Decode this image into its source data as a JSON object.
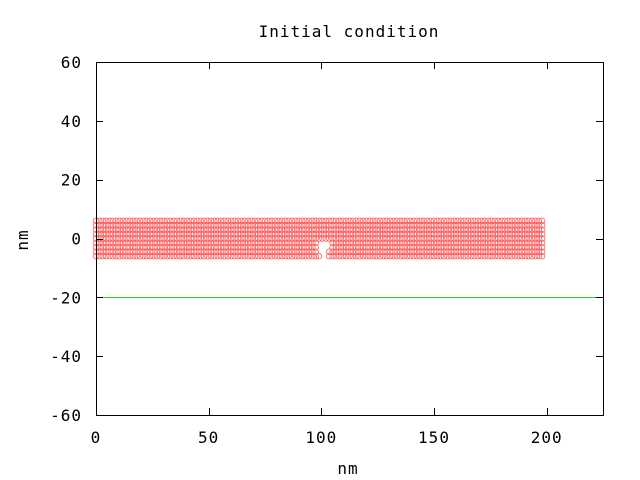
{
  "chart_data": {
    "type": "scatter",
    "title": "Initial condition",
    "xlabel": "nm",
    "ylabel": "nm",
    "xlim": [
      0,
      225
    ],
    "ylim": [
      -60,
      60
    ],
    "xticks": [
      0,
      50,
      100,
      150,
      200
    ],
    "yticks": [
      -60,
      -40,
      -20,
      0,
      20,
      40,
      60
    ],
    "grid": false,
    "legend": "none",
    "series": [
      {
        "marker": "circle",
        "color": "#ff5a5a",
        "region": {
          "x_min": 0,
          "x_max": 198,
          "x_step": 1.5,
          "y_min": -6,
          "y_max": 6,
          "y_step": 1.5,
          "notch": {
            "x_center": 101,
            "half_width": 3.5,
            "y_top": -1
          }
        }
      }
    ],
    "lines": [
      {
        "y": -20,
        "color": "#22cc22"
      }
    ]
  }
}
